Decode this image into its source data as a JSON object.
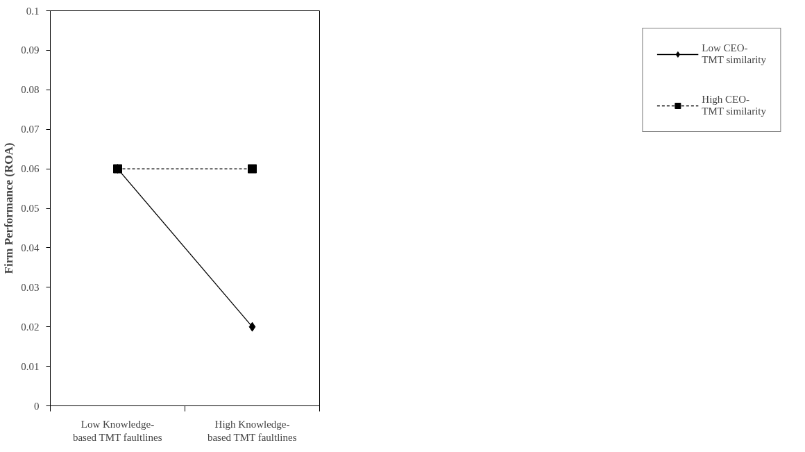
{
  "chart_data": {
    "type": "line",
    "ylabel": "Firm Performance (ROA)",
    "categories": [
      "Low Knowledge-\nbased TMT faultlines",
      "High Knowledge-\nbased TMT faultlines"
    ],
    "series": [
      {
        "name": "Low CEO-\nTMT similarity",
        "color": "#000000",
        "values": [
          0.06,
          0.02
        ],
        "marker": "diamond",
        "line_style": "solid"
      },
      {
        "name": "High CEO-\nTMT similarity",
        "color": "#000000",
        "values": [
          0.06,
          0.06
        ],
        "marker": "square",
        "line_style": "dashed"
      }
    ],
    "ylim": [
      0,
      0.1
    ],
    "yticks": [
      0,
      0.01,
      0.02,
      0.03,
      0.04,
      0.05,
      0.06,
      0.07,
      0.08,
      0.09,
      0.1
    ],
    "grid": false,
    "legend": "right"
  }
}
